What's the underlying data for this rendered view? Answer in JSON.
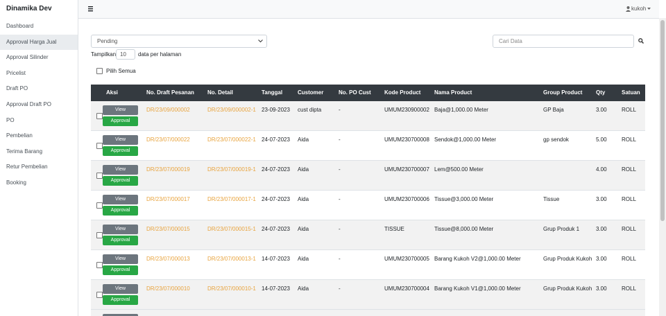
{
  "sidebar": {
    "brand": "Dinamika Dev",
    "menu": [
      "Dashboard",
      "Approval Harga Jual",
      "Approval Silinder",
      "Pricelist",
      "Draft PO",
      "Approval Draft PO",
      "PO",
      "Pembelian",
      "Terima Barang",
      "Retur Pembelian",
      "Booking"
    ]
  },
  "topbar": {
    "user": "kukoh"
  },
  "filter": {
    "status": "Pending",
    "search_placeholder": "Cari Data",
    "show_prefix": "Tampilkan",
    "page_size": 10,
    "show_suffix": "data per halaman",
    "select_all": "Pilih Semua"
  },
  "table": {
    "headers": [
      "Aksi",
      "No. Draft Pesanan",
      "No. Detail",
      "Tanggal",
      "Customer",
      "No. PO Cust",
      "Kode Product",
      "Nama Product",
      "Group Product",
      "Qty",
      "Satuan"
    ],
    "buttons": {
      "view": "View",
      "approval": "Approval"
    },
    "rows": [
      [
        "DR/23/09/000002",
        "DR/23/09/000002-1",
        "23-09-2023",
        "cust dipta",
        "-",
        "UMUM230900002",
        "Baja@1,000.00 Meter",
        "GP Baja",
        "3.00",
        "ROLL"
      ],
      [
        "DR/23/07/000022",
        "DR/23/07/000022-1",
        "24-07-2023",
        "Aida",
        "-",
        "UMUM230700008",
        "Sendok@1,000.00 Meter",
        "gp sendok",
        "5.00",
        "ROLL"
      ],
      [
        "DR/23/07/000019",
        "DR/23/07/000019-1",
        "24-07-2023",
        "Aida",
        "-",
        "UMUM230700007",
        "Lem@500.00 Meter",
        null,
        "4.00",
        "ROLL"
      ],
      [
        "DR/23/07/000017",
        "DR/23/07/000017-1",
        "24-07-2023",
        "Aida",
        "-",
        "UMUM230700006",
        "Tissue@3,000.00 Meter",
        "Tissue",
        "3.00",
        "ROLL"
      ],
      [
        "DR/23/07/000015",
        "DR/23/07/000015-1",
        "24-07-2023",
        "Aida",
        "-",
        "TISSUE",
        "Tissue@8,000.00 Meter",
        "Grup Produk 1",
        "3.00",
        "ROLL"
      ],
      [
        "DR/23/07/000013",
        "DR/23/07/000013-1",
        "14-07-2023",
        "Aida",
        "-",
        "UMUM230700005",
        "Barang Kukoh V2@1,000.00 Meter",
        "Grup Produk Kukoh",
        "3.00",
        "ROLL"
      ],
      [
        "DR/23/07/000010",
        "DR/23/07/000010-1",
        "14-07-2023",
        "Aida",
        "-",
        "UMUM230700004",
        "Barang Kukoh V1@1,000.00 Meter",
        "Grup Produk Kukoh",
        "3.00",
        "ROLL"
      ]
    ]
  }
}
